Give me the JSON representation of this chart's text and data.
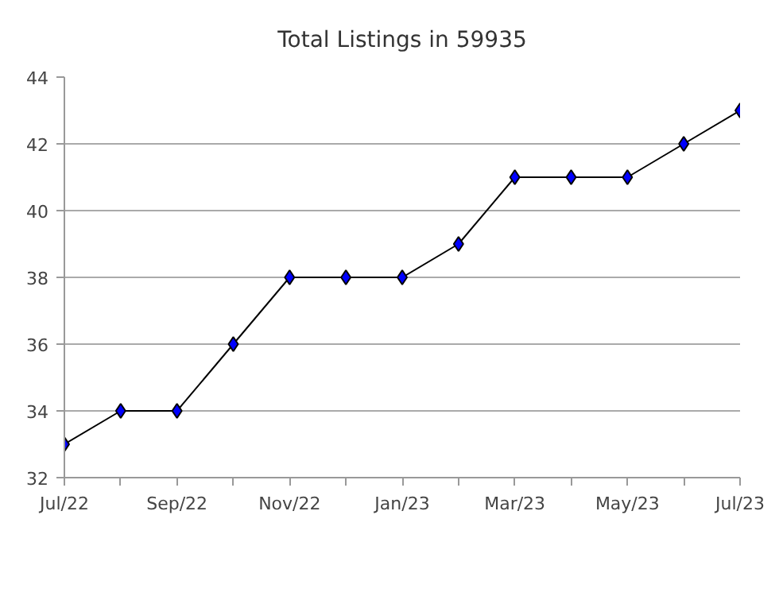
{
  "chart_data": {
    "type": "line",
    "title": "Total Listings in 59935",
    "categories": [
      "Jul/22",
      null,
      "Sep/22",
      null,
      "Nov/22",
      null,
      "Jan/23",
      null,
      "Mar/23",
      null,
      "May/23",
      null,
      "Jul/23"
    ],
    "series": [
      {
        "color": "#0000ff",
        "values": [
          33,
          34,
          34,
          36,
          38,
          38,
          38,
          39,
          41,
          41,
          41,
          42,
          43
        ]
      }
    ],
    "ylim": [
      32,
      44
    ],
    "yticks": [
      32,
      34,
      36,
      38,
      40,
      42,
      44
    ],
    "grid": "y",
    "marker": "diamond",
    "line_style": "solid"
  }
}
